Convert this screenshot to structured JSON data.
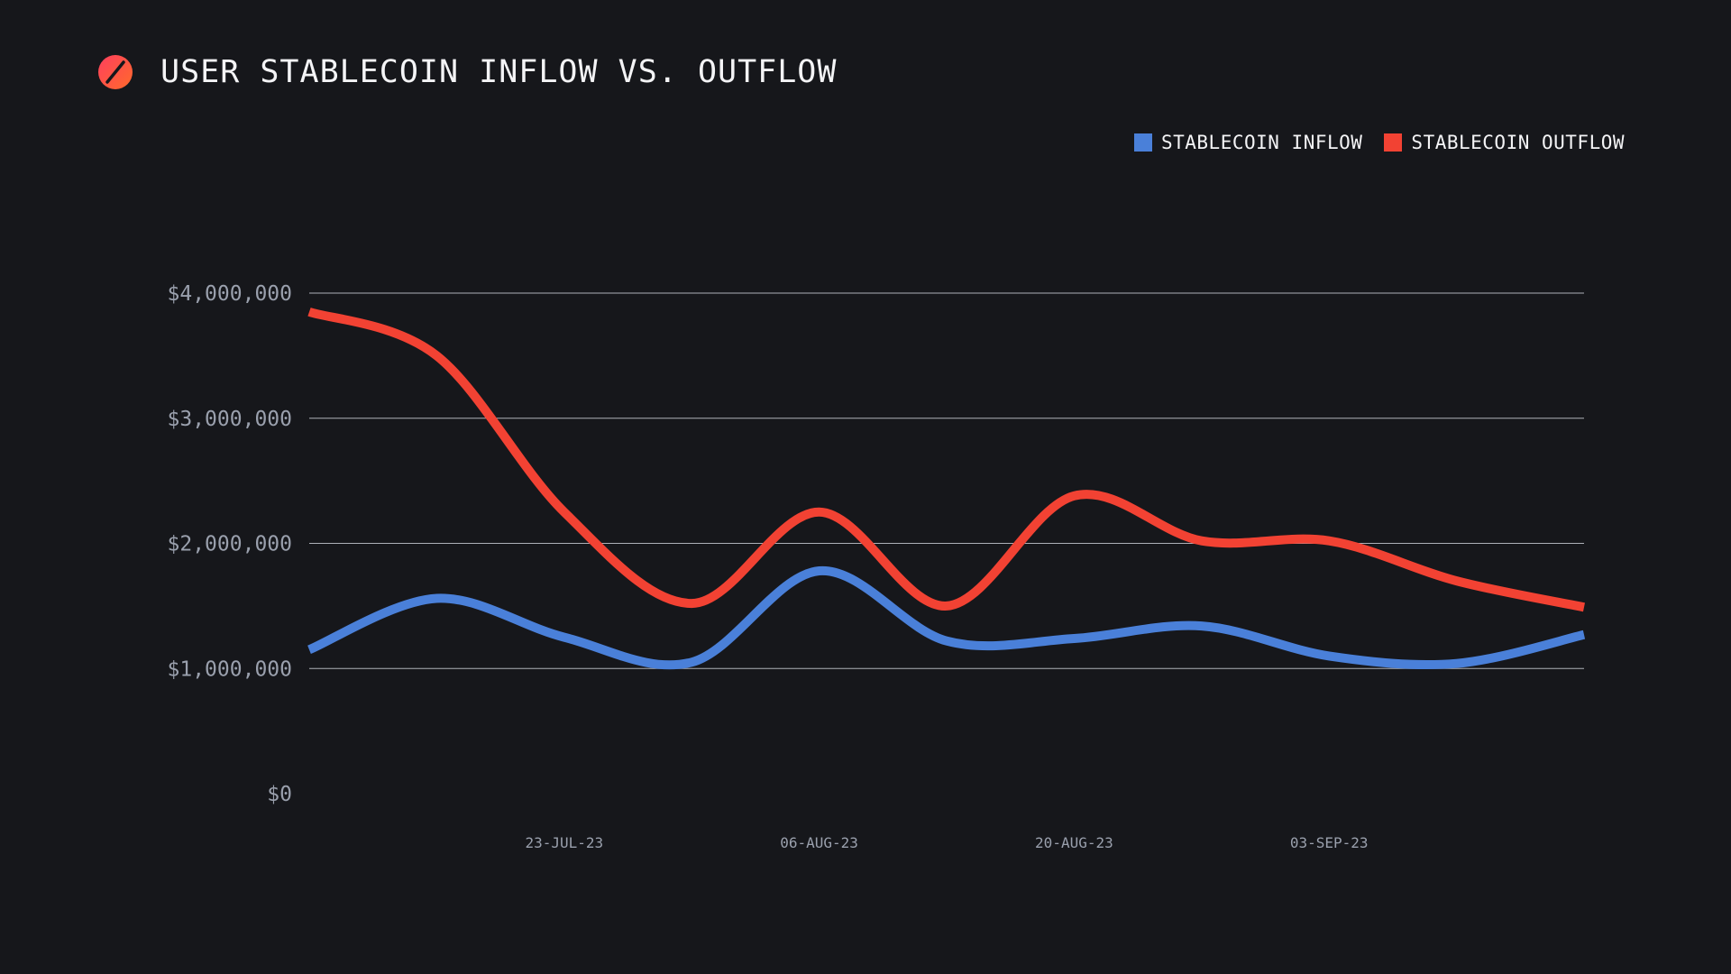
{
  "header": {
    "title": "USER STABLECOIN INFLOW VS. OUTFLOW",
    "logo_icon": "slashed-circle-logo"
  },
  "colors": {
    "background": "#16171b",
    "inflow": "#4a80d9",
    "outflow": "#f24233",
    "logo_start": "#ff3f5e",
    "logo_end": "#ff6a2b",
    "grid": "#c9ccd3"
  },
  "chart_data": {
    "type": "line",
    "title": "USER STABLECOIN INFLOW VS. OUTFLOW",
    "xlabel": "",
    "ylabel": "",
    "ylim": [
      0,
      4000000
    ],
    "yticks": [
      0,
      1000000,
      2000000,
      3000000,
      4000000
    ],
    "ytick_labels": [
      "$0",
      "$1,000,000",
      "$2,000,000",
      "$3,000,000",
      "$4,000,000"
    ],
    "xlim": [
      0,
      70
    ],
    "xticks": [
      14,
      28,
      42,
      56
    ],
    "xtick_labels": [
      "23-JUL-23",
      "06-AUG-23",
      "20-AUG-23",
      "03-SEP-23"
    ],
    "grid": true,
    "smooth": true,
    "legend_position": "top-right",
    "series": [
      {
        "name": "STABLECOIN INFLOW",
        "color": "#4a80d9",
        "x": [
          0,
          7,
          14,
          21,
          28,
          35,
          42,
          49,
          56,
          63,
          70
        ],
        "values": [
          1150000,
          1560000,
          1250000,
          1050000,
          1780000,
          1220000,
          1240000,
          1340000,
          1100000,
          1040000,
          1270000
        ]
      },
      {
        "name": "STABLECOIN OUTFLOW",
        "color": "#f24233",
        "x": [
          0,
          7,
          14,
          21,
          28,
          35,
          42,
          49,
          56,
          63,
          70
        ],
        "values": [
          3850000,
          3500000,
          2250000,
          1520000,
          2250000,
          1500000,
          2380000,
          2020000,
          2020000,
          1700000,
          1490000
        ]
      }
    ]
  }
}
